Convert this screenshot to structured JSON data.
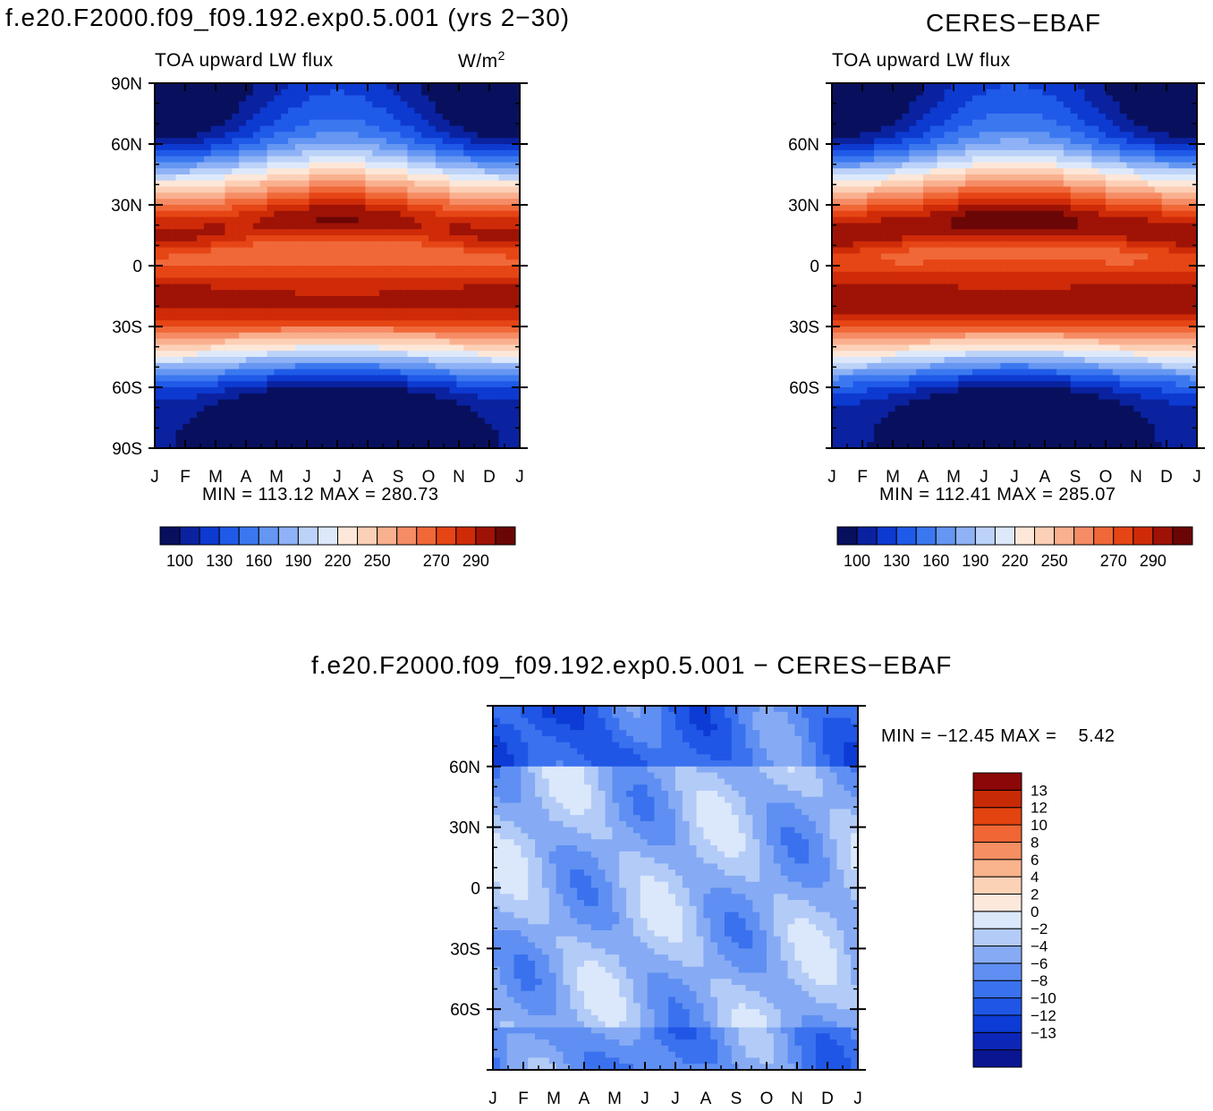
{
  "titles": {
    "left": "f.e20.F2000.f09_f09.192.exp0.5.001 (yrs 2−30)",
    "right": "CERES−EBAF",
    "bottom": "f.e20.F2000.f09_f09.192.exp0.5.001 − CERES−EBAF"
  },
  "panel_labels": {
    "variable": "TOA upward LW flux",
    "units_base": "W/m",
    "units_sup": "2"
  },
  "stats": {
    "left": "MIN = 113.12 MAX = 280.73",
    "right": "MIN = 112.41 MAX = 285.07",
    "bottom": "MIN = −12.45 MAX =    5.42"
  },
  "colors": {
    "abs_scale": [
      "#08105e",
      "#0a22a0",
      "#0d3ad0",
      "#1f5ae8",
      "#3b78f0",
      "#6596f2",
      "#8eb2f5",
      "#bcd2f8",
      "#dde9fb",
      "#fde7d8",
      "#fcd0b6",
      "#f9b08f",
      "#f58c65",
      "#f06838",
      "#e64515",
      "#cf2b08",
      "#9e1306",
      "#6a0606"
    ],
    "diff_scale": [
      "#0a1592",
      "#0c26b8",
      "#0d3bd5",
      "#1f56e6",
      "#3a71ee",
      "#5f8ff2",
      "#86abf4",
      "#b3cbf7",
      "#dbe8fb",
      "#fde8dc",
      "#fcd2b6",
      "#f9b48c",
      "#f58e62",
      "#f06634",
      "#e3430f",
      "#c72a07",
      "#8c0707"
    ]
  },
  "chart_data": [
    {
      "type": "heatmap",
      "title": "f.e20.F2000.f09_f09.192.exp0.5.001 (yrs 2−30)",
      "subtitle": "TOA upward LW flux",
      "units": "W/m2",
      "x": [
        "J",
        "F",
        "M",
        "A",
        "M",
        "J",
        "J",
        "A",
        "S",
        "O",
        "N",
        "D",
        "J"
      ],
      "y_ticks": [
        "90N",
        "60N",
        "30N",
        "0",
        "30S",
        "60S",
        "90S"
      ],
      "colorbar_labels": [
        "100",
        "130",
        "160",
        "190",
        "220",
        "250",
        "270",
        "290"
      ],
      "colorbar_levels": [
        100,
        110,
        120,
        130,
        140,
        150,
        160,
        170,
        180,
        190,
        200,
        210,
        220,
        230,
        240,
        250,
        260,
        270,
        280,
        290
      ],
      "ylim": [
        -90,
        90
      ],
      "min": 113.12,
      "max": 280.73
    },
    {
      "type": "heatmap",
      "title": "CERES−EBAF",
      "subtitle": "TOA upward LW flux",
      "x": [
        "J",
        "F",
        "M",
        "A",
        "M",
        "J",
        "J",
        "A",
        "S",
        "O",
        "N",
        "D",
        "J"
      ],
      "y_ticks": [
        "60N",
        "30N",
        "0",
        "30S",
        "60S"
      ],
      "colorbar_labels": [
        "100",
        "130",
        "160",
        "190",
        "220",
        "250",
        "270",
        "290"
      ],
      "ylim": [
        -90,
        90
      ],
      "min": 112.41,
      "max": 285.07
    },
    {
      "type": "heatmap",
      "title": "f.e20.F2000.f09_f09.192.exp0.5.001 − CERES−EBAF",
      "x": [
        "J",
        "F",
        "M",
        "A",
        "M",
        "J",
        "J",
        "A",
        "S",
        "O",
        "N",
        "D",
        "J"
      ],
      "y_ticks": [
        "60N",
        "30N",
        "0",
        "30S",
        "60S"
      ],
      "colorbar_labels": [
        "13",
        "12",
        "10",
        "8",
        "6",
        "4",
        "2",
        "0",
        "−2",
        "−4",
        "−6",
        "−8",
        "−10",
        "−12",
        "−13"
      ],
      "ylim": [
        -90,
        90
      ],
      "min": -12.45,
      "max": 5.42
    }
  ]
}
